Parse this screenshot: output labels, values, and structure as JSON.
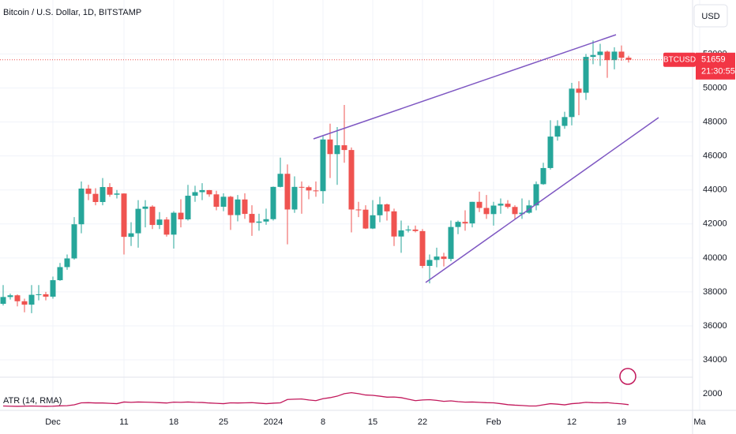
{
  "chart_data": {
    "type": "candlestick",
    "title": "Bitcoin / U.S. Dollar, 1D, BITSTAMP",
    "currency": "USD",
    "symbol": "BTCUSD",
    "countdown": "21:30:55",
    "up_color": "#26a69a",
    "down_color": "#ef5350",
    "grid": true,
    "categories": [
      "2023-11-24",
      "2023-11-25",
      "2023-11-26",
      "2023-11-27",
      "2023-11-28",
      "2023-11-29",
      "2023-11-30",
      "2023-12-01",
      "2023-12-02",
      "2023-12-03",
      "2023-12-04",
      "2023-12-05",
      "2023-12-06",
      "2023-12-07",
      "2023-12-08",
      "2023-12-09",
      "2023-12-10",
      "2023-12-11",
      "2023-12-12",
      "2023-12-13",
      "2023-12-14",
      "2023-12-15",
      "2023-12-16",
      "2023-12-17",
      "2023-12-18",
      "2023-12-19",
      "2023-12-20",
      "2023-12-21",
      "2023-12-22",
      "2023-12-23",
      "2023-12-24",
      "2023-12-25",
      "2023-12-26",
      "2023-12-27",
      "2023-12-28",
      "2023-12-29",
      "2023-12-30",
      "2023-12-31",
      "2024-01-01",
      "2024-01-02",
      "2024-01-03",
      "2024-01-04",
      "2024-01-05",
      "2024-01-06",
      "2024-01-07",
      "2024-01-08",
      "2024-01-09",
      "2024-01-10",
      "2024-01-11",
      "2024-01-12",
      "2024-01-13",
      "2024-01-14",
      "2024-01-15",
      "2024-01-16",
      "2024-01-17",
      "2024-01-18",
      "2024-01-19",
      "2024-01-20",
      "2024-01-21",
      "2024-01-22",
      "2024-01-23",
      "2024-01-24",
      "2024-01-25",
      "2024-01-26",
      "2024-01-27",
      "2024-01-28",
      "2024-01-29",
      "2024-01-30",
      "2024-01-31",
      "2024-02-01",
      "2024-02-02",
      "2024-02-03",
      "2024-02-04",
      "2024-02-05",
      "2024-02-06",
      "2024-02-07",
      "2024-02-08",
      "2024-02-09",
      "2024-02-10",
      "2024-02-11",
      "2024-02-12",
      "2024-02-13",
      "2024-02-14",
      "2024-02-15",
      "2024-02-16",
      "2024-02-17",
      "2024-02-18",
      "2024-02-19",
      "2024-02-20"
    ],
    "open": [
      37300,
      37700,
      37800,
      37450,
      37250,
      37830,
      37860,
      37720,
      38690,
      39460,
      39970,
      41980,
      44080,
      43770,
      43290,
      44170,
      43720,
      43790,
      41240,
      41450,
      42890,
      43020,
      41940,
      42260,
      41370,
      42660,
      42270,
      43660,
      43870,
      43990,
      43740,
      43010,
      43600,
      42520,
      43440,
      42590,
      42070,
      42140,
      42280,
      44180,
      44950,
      42850,
      44180,
      44160,
      43970,
      43930,
      46970,
      46110,
      46630,
      46350,
      42850,
      42840,
      41730,
      42510,
      43150,
      42740,
      41260,
      41620,
      41670,
      41580,
      39530,
      39880,
      40080,
      39940,
      41820,
      42120,
      42030,
      43300,
      42940,
      42580,
      43080,
      43190,
      43000,
      42580,
      42660,
      43090,
      44340,
      45290,
      47140,
      47770,
      48290,
      49960,
      49720,
      51830,
      51940,
      52140,
      51640,
      52140,
      51780
    ],
    "high": [
      38400,
      37900,
      37850,
      37600,
      38400,
      38400,
      38000,
      38900,
      39700,
      40200,
      42400,
      44500,
      44300,
      44100,
      44700,
      44400,
      44000,
      43800,
      42100,
      43400,
      43400,
      43100,
      42700,
      42400,
      42750,
      43450,
      44300,
      44250,
      44400,
      44000,
      43950,
      43800,
      43650,
      43700,
      43800,
      43100,
      42600,
      42900,
      44200,
      45900,
      45500,
      44800,
      44500,
      44250,
      44500,
      47200,
      47900,
      47700,
      49000,
      46500,
      43300,
      43100,
      43400,
      43600,
      43200,
      42900,
      42200,
      41900,
      41900,
      41700,
      40200,
      40600,
      40300,
      42200,
      42200,
      42800,
      43300,
      43900,
      43700,
      43300,
      43500,
      43400,
      43100,
      43500,
      43400,
      44500,
      45600,
      48100,
      48100,
      48600,
      50300,
      50400,
      52000,
      52800,
      52600,
      52200,
      52400,
      52500,
      51900
    ],
    "low": [
      37200,
      37550,
      37150,
      36800,
      36750,
      37500,
      37500,
      37600,
      38650,
      39300,
      39900,
      41450,
      43400,
      43100,
      43100,
      43600,
      43500,
      40200,
      40700,
      40600,
      41800,
      41700,
      41700,
      41250,
      40550,
      41800,
      42200,
      43300,
      43400,
      43600,
      42800,
      42750,
      41650,
      42150,
      42300,
      41300,
      41600,
      41950,
      42200,
      44150,
      40800,
      42650,
      42600,
      43450,
      43600,
      43200,
      44700,
      44300,
      45600,
      41500,
      42400,
      41700,
      41700,
      42100,
      42200,
      40700,
      40300,
      41500,
      41500,
      39400,
      38500,
      39450,
      39500,
      39800,
      41400,
      41600,
      41800,
      42700,
      42300,
      41900,
      42600,
      42900,
      42300,
      42300,
      42600,
      42800,
      44300,
      45200,
      46900,
      47600,
      47800,
      48400,
      49300,
      51400,
      51300,
      50600,
      51100,
      51600,
      51500
    ],
    "close": [
      37700,
      37800,
      37450,
      37250,
      37830,
      37860,
      37720,
      38690,
      39460,
      39970,
      41980,
      44080,
      43770,
      43290,
      44170,
      43720,
      43790,
      41240,
      41450,
      42890,
      43020,
      41940,
      42260,
      41370,
      42660,
      42270,
      43660,
      43870,
      43990,
      43740,
      43010,
      43600,
      42520,
      43440,
      42590,
      42070,
      42140,
      42280,
      44180,
      44950,
      42850,
      44180,
      44160,
      43970,
      43930,
      46970,
      46110,
      46630,
      46350,
      42850,
      42840,
      41730,
      42510,
      43150,
      42740,
      41260,
      41620,
      41670,
      41580,
      39530,
      39880,
      40080,
      39940,
      41820,
      42120,
      42030,
      43300,
      42940,
      42580,
      43080,
      43190,
      43000,
      42580,
      42660,
      43090,
      44340,
      45290,
      47140,
      47770,
      48290,
      49960,
      49720,
      51830,
      51940,
      52140,
      51640,
      52140,
      51780,
      51659
    ],
    "ylim": [
      32981,
      55178
    ],
    "yticks": [
      34000,
      36000,
      38000,
      40000,
      42000,
      44000,
      46000,
      48000,
      50000,
      52000
    ],
    "xticks": [
      {
        "value": "2023-12-01",
        "label": "Dec"
      },
      {
        "value": "2023-12-11",
        "label": "11"
      },
      {
        "value": "2023-12-18",
        "label": "18"
      },
      {
        "value": "2023-12-25",
        "label": "25"
      },
      {
        "value": "2024-01-01",
        "label": "2024"
      },
      {
        "value": "2024-01-08",
        "label": "8"
      },
      {
        "value": "2024-01-15",
        "label": "15"
      },
      {
        "value": "2024-01-22",
        "label": "22"
      },
      {
        "value": "2024-02-01",
        "label": "Feb"
      },
      {
        "value": "2024-02-12",
        "label": "12"
      },
      {
        "value": "2024-02-19",
        "label": "19"
      },
      {
        "value": "2024-03-01",
        "label": "Ma"
      }
    ],
    "indicator": {
      "name": "ATR (14, RMA)",
      "color": "#c2185b",
      "values": [
        1260,
        1250,
        1240,
        1250,
        1260,
        1250,
        1240,
        1250,
        1270,
        1280,
        1330,
        1450,
        1460,
        1440,
        1440,
        1420,
        1400,
        1500,
        1480,
        1500,
        1490,
        1480,
        1460,
        1440,
        1490,
        1480,
        1500,
        1480,
        1470,
        1440,
        1420,
        1400,
        1450,
        1440,
        1450,
        1460,
        1430,
        1400,
        1430,
        1450,
        1650,
        1670,
        1680,
        1620,
        1580,
        1700,
        1760,
        1850,
        2000,
        2060,
        2000,
        1920,
        1900,
        1850,
        1790,
        1800,
        1760,
        1670,
        1580,
        1620,
        1640,
        1600,
        1540,
        1570,
        1520,
        1490,
        1500,
        1480,
        1460,
        1450,
        1400,
        1340,
        1310,
        1290,
        1260,
        1260,
        1330,
        1400,
        1370,
        1330,
        1400,
        1430,
        1480,
        1460,
        1450,
        1460,
        1420,
        1390,
        1340
      ],
      "ylim": [
        1000,
        2800
      ],
      "yticks": [
        2000
      ]
    }
  }
}
